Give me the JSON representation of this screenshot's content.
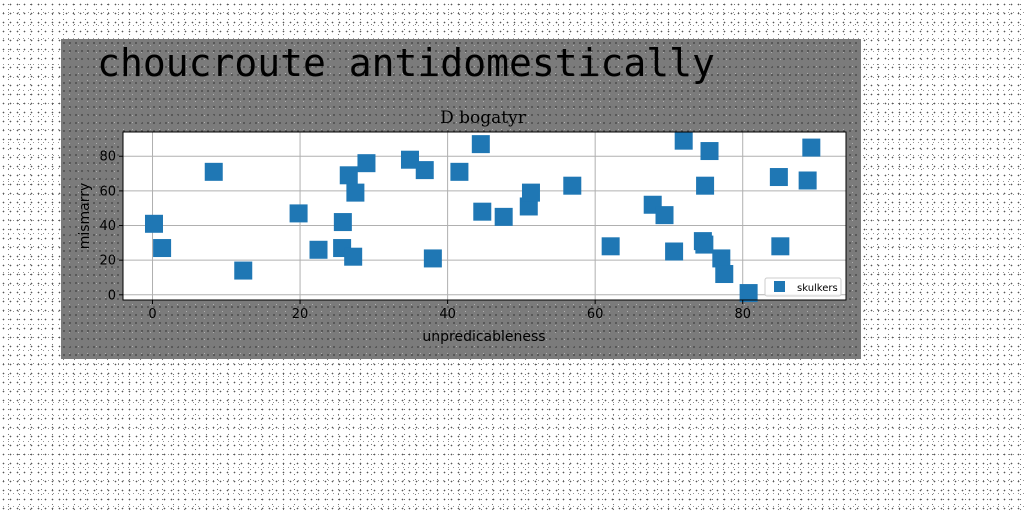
{
  "figure": {
    "suptitle": "choucroute antidomestically"
  },
  "chart_data": {
    "type": "scatter",
    "title": "D bogatyr",
    "xlabel": "unpredicableness",
    "ylabel": "mismarry",
    "xlim": [
      -4,
      94
    ],
    "ylim": [
      -3,
      94
    ],
    "xticks": [
      0,
      20,
      40,
      60,
      80
    ],
    "yticks": [
      0,
      20,
      40,
      60,
      80
    ],
    "grid": true,
    "legend_position": "lower right",
    "marker": "square",
    "color": "#1f77b4",
    "series": [
      {
        "name": "skulkers",
        "x": [
          0.2,
          1.3,
          8.3,
          12.3,
          19.8,
          22.5,
          25.7,
          25.8,
          26.6,
          27.2,
          27.5,
          29.0,
          34.9,
          36.9,
          38.0,
          41.6,
          44.5,
          44.7,
          47.6,
          51.0,
          51.3,
          56.9,
          62.1,
          67.8,
          69.4,
          70.7,
          72.0,
          74.6,
          74.8,
          74.9,
          75.5,
          77.1,
          77.5,
          80.8,
          84.9,
          85.1,
          88.8,
          89.3
        ],
        "y": [
          41,
          27,
          71,
          14,
          47,
          26,
          27,
          42,
          69,
          22,
          59,
          76,
          78,
          72,
          21,
          71,
          87,
          48,
          45,
          51,
          59,
          63,
          28,
          52,
          46,
          25,
          89,
          31,
          29,
          63,
          83,
          21,
          12,
          1,
          68,
          28,
          66,
          85
        ]
      }
    ]
  }
}
